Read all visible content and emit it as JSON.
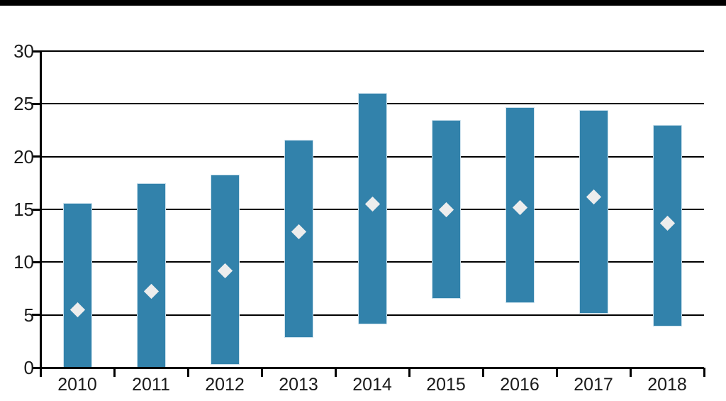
{
  "page": {
    "background_color": "#ffffff",
    "top_band_color": "#000000"
  },
  "chart_data": {
    "type": "bar",
    "subtype": "floating-range-bars-with-diamond-markers",
    "title": "",
    "xlabel": "",
    "ylabel": "",
    "categories": [
      "2010",
      "2011",
      "2012",
      "2013",
      "2014",
      "2015",
      "2016",
      "2017",
      "2018"
    ],
    "series": [
      {
        "name": "range",
        "low": [
          0.0,
          0.0,
          0.3,
          2.8,
          4.1,
          6.5,
          6.1,
          5.1,
          3.9
        ],
        "high": [
          15.6,
          17.5,
          18.3,
          21.6,
          26.0,
          23.5,
          24.7,
          24.4,
          23.0
        ]
      },
      {
        "name": "marker",
        "values": [
          5.5,
          7.2,
          9.2,
          12.9,
          15.5,
          15.0,
          15.2,
          16.2,
          13.7
        ]
      }
    ],
    "ylim": [
      0,
      30
    ],
    "y_ticks": [
      0,
      5,
      10,
      15,
      20,
      25,
      30
    ],
    "y_tick_labels": [
      "0",
      "5",
      "10",
      "15",
      "20",
      "25",
      "30"
    ],
    "grid": "horizontal",
    "legend": "none",
    "bar_color": "#3282AB",
    "bar_edge_color": "#CFE3EE",
    "marker_color": "#EDEDED",
    "grid_color": "#000000",
    "axis_color": "#000000",
    "text_color": "#1a1a1a"
  }
}
